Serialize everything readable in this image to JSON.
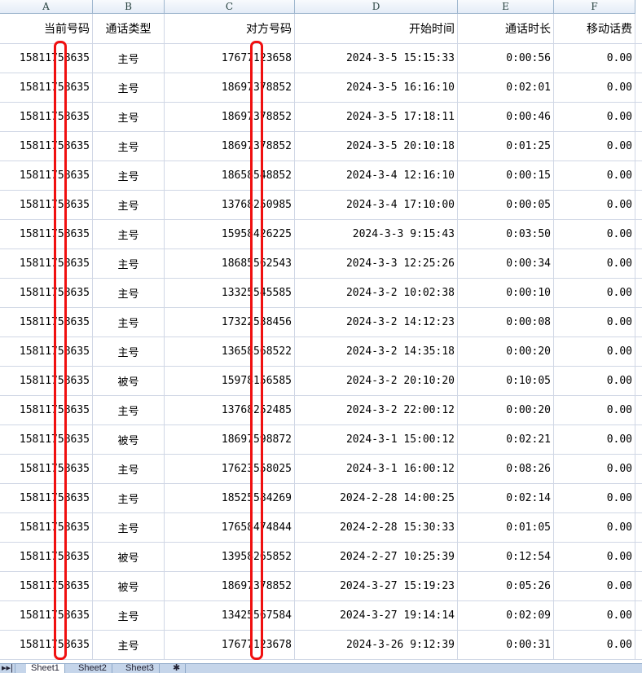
{
  "columns": [
    "A",
    "B",
    "C",
    "D",
    "E",
    "F"
  ],
  "headers": [
    "当前号码",
    "通话类型",
    "对方号码",
    "开始时间",
    "通话时长",
    "移动话费"
  ],
  "rows": [
    [
      "15811758635",
      "主号",
      "17677123658",
      "2024-3-5 15:15:33",
      "0:00:56",
      "0.00"
    ],
    [
      "15811758635",
      "主号",
      "18697378852",
      "2024-3-5 16:16:10",
      "0:02:01",
      "0.00"
    ],
    [
      "15811758635",
      "主号",
      "18697378852",
      "2024-3-5 17:18:11",
      "0:00:46",
      "0.00"
    ],
    [
      "15811758635",
      "主号",
      "18697378852",
      "2024-3-5 20:10:18",
      "0:01:25",
      "0.00"
    ],
    [
      "15811758635",
      "主号",
      "18658548852",
      "2024-3-4 12:16:10",
      "0:00:15",
      "0.00"
    ],
    [
      "15811758635",
      "主号",
      "13768250985",
      "2024-3-4 17:10:00",
      "0:00:05",
      "0.00"
    ],
    [
      "15811758635",
      "主号",
      "15958426225",
      "2024-3-3 9:15:43",
      "0:03:50",
      "0.00"
    ],
    [
      "15811758635",
      "主号",
      "18685562543",
      "2024-3-3 12:25:26",
      "0:00:34",
      "0.00"
    ],
    [
      "15811758635",
      "主号",
      "13325545585",
      "2024-3-2 10:02:38",
      "0:00:10",
      "0.00"
    ],
    [
      "15811758635",
      "主号",
      "17322538456",
      "2024-3-2 14:12:23",
      "0:00:08",
      "0.00"
    ],
    [
      "15811758635",
      "主号",
      "13658568522",
      "2024-3-2 14:35:18",
      "0:00:20",
      "0.00"
    ],
    [
      "15811758635",
      "被号",
      "15978156585",
      "2024-3-2 20:10:20",
      "0:10:05",
      "0.00"
    ],
    [
      "15811758635",
      "主号",
      "13768252485",
      "2024-3-2 22:00:12",
      "0:00:20",
      "0.00"
    ],
    [
      "15811758635",
      "被号",
      "18697598872",
      "2024-3-1 15:00:12",
      "0:02:21",
      "0.00"
    ],
    [
      "15811758635",
      "主号",
      "17623558025",
      "2024-3-1 16:00:12",
      "0:08:26",
      "0.00"
    ],
    [
      "15811758635",
      "主号",
      "18525584269",
      "2024-2-28 14:00:25",
      "0:02:14",
      "0.00"
    ],
    [
      "15811758635",
      "主号",
      "17658474844",
      "2024-2-28 15:30:33",
      "0:01:05",
      "0.00"
    ],
    [
      "15811758635",
      "被号",
      "13958265852",
      "2024-2-27 10:25:39",
      "0:12:54",
      "0.00"
    ],
    [
      "15811758635",
      "被号",
      "18697378852",
      "2024-3-27 15:19:23",
      "0:05:26",
      "0.00"
    ],
    [
      "15811758635",
      "主号",
      "13425567584",
      "2024-3-27 19:14:14",
      "0:02:09",
      "0.00"
    ],
    [
      "15811758635",
      "主号",
      "17677123678",
      "2024-3-26 9:12:39",
      "0:00:31",
      "0.00"
    ]
  ],
  "sheet_tabs": [
    "Sheet1",
    "Sheet2",
    "Sheet3"
  ],
  "redaction_color": "#f01010"
}
